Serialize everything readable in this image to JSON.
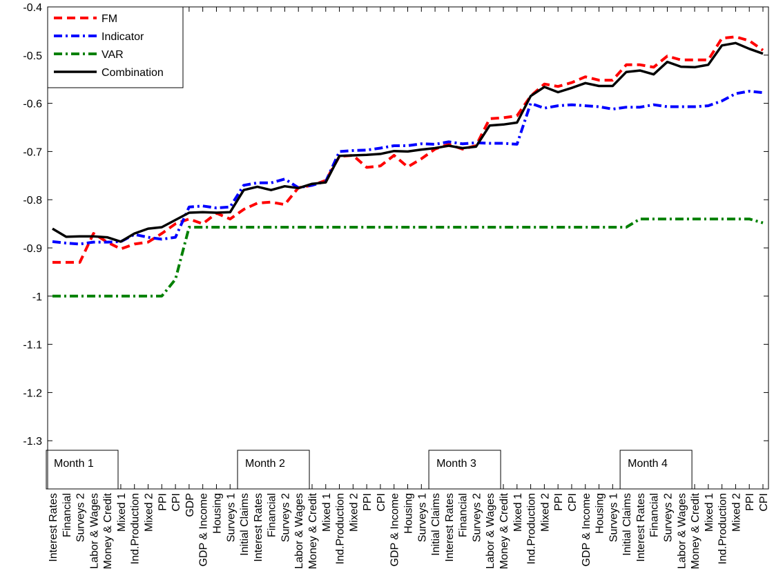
{
  "chart_data": {
    "type": "line",
    "title": "",
    "xlabel": "",
    "ylabel": "",
    "ylim": [
      -1.4,
      -0.4
    ],
    "yticks": [
      -1.3,
      -1.2,
      -1.1,
      -1,
      -0.9,
      -0.8,
      -0.7,
      -0.6,
      -0.5,
      -0.4
    ],
    "grid": false,
    "legend_position": "top-left",
    "categories": [
      "Interest Rates",
      "Financial",
      "Surveys 2",
      "Labor & Wages",
      "Money & Credit",
      "Mixed 1",
      "Ind.Production",
      "Mixed 2",
      "PPI",
      "CPI",
      "GDP",
      "GDP & Income",
      "Housing",
      "Surveys 1",
      "Initial Claims",
      "Interest Rates",
      "Financial",
      "Surveys 2",
      "Labor & Wages",
      "Money & Credit",
      "Mixed 1",
      "Ind.Production",
      "Mixed 2",
      "PPI",
      "CPI",
      "GDP & Income",
      "Housing",
      "Surveys 1",
      "Initial Claims",
      "Interest Rates",
      "Financial",
      "Surveys 2",
      "Labor & Wages",
      "Money & Credit",
      "Mixed 1",
      "Ind.Production",
      "Mixed 2",
      "PPI",
      "CPI",
      "GDP & Income",
      "Housing",
      "Surveys 1",
      "Initial Claims",
      "Interest Rates",
      "Financial",
      "Surveys 2",
      "Labor & Wages",
      "Money & Credit",
      "Mixed 1",
      "Ind.Production",
      "Mixed 2",
      "PPI",
      "CPI"
    ],
    "series": [
      {
        "name": "FM",
        "color": "#ff0000",
        "style": "dashed",
        "values": [
          -0.93,
          -0.93,
          -0.93,
          -0.87,
          -0.888,
          -0.902,
          -0.892,
          -0.888,
          -0.87,
          -0.85,
          -0.84,
          -0.85,
          -0.828,
          -0.84,
          -0.82,
          -0.807,
          -0.805,
          -0.81,
          -0.775,
          -0.77,
          -0.76,
          -0.71,
          -0.708,
          -0.733,
          -0.73,
          -0.708,
          -0.732,
          -0.715,
          -0.695,
          -0.685,
          -0.695,
          -0.688,
          -0.632,
          -0.63,
          -0.626,
          -0.585,
          -0.56,
          -0.565,
          -0.557,
          -0.545,
          -0.552,
          -0.552,
          -0.52,
          -0.52,
          -0.525,
          -0.502,
          -0.51,
          -0.51,
          -0.51,
          -0.465,
          -0.462,
          -0.47,
          -0.49
        ]
      },
      {
        "name": "Indicator",
        "color": "#0000ff",
        "style": "dashdot",
        "values": [
          -0.887,
          -0.89,
          -0.892,
          -0.888,
          -0.888,
          -0.887,
          -0.872,
          -0.878,
          -0.882,
          -0.878,
          -0.815,
          -0.813,
          -0.817,
          -0.815,
          -0.77,
          -0.765,
          -0.765,
          -0.757,
          -0.775,
          -0.77,
          -0.762,
          -0.7,
          -0.698,
          -0.697,
          -0.693,
          -0.688,
          -0.688,
          -0.684,
          -0.685,
          -0.68,
          -0.684,
          -0.682,
          -0.683,
          -0.683,
          -0.685,
          -0.6,
          -0.61,
          -0.605,
          -0.603,
          -0.605,
          -0.607,
          -0.612,
          -0.608,
          -0.608,
          -0.603,
          -0.607,
          -0.607,
          -0.607,
          -0.605,
          -0.595,
          -0.58,
          -0.575,
          -0.578
        ]
      },
      {
        "name": "VAR",
        "color": "#008000",
        "style": "dashdot",
        "values": [
          -1,
          -1,
          -1,
          -1,
          -1,
          -1,
          -1,
          -1,
          -1,
          -0.965,
          -0.857,
          -0.857,
          -0.857,
          -0.857,
          -0.857,
          -0.857,
          -0.857,
          -0.857,
          -0.857,
          -0.857,
          -0.857,
          -0.857,
          -0.857,
          -0.857,
          -0.857,
          -0.857,
          -0.857,
          -0.857,
          -0.857,
          -0.857,
          -0.857,
          -0.857,
          -0.857,
          -0.857,
          -0.857,
          -0.857,
          -0.857,
          -0.857,
          -0.857,
          -0.857,
          -0.857,
          -0.857,
          -0.857,
          -0.84,
          -0.84,
          -0.84,
          -0.84,
          -0.84,
          -0.84,
          -0.84,
          -0.84,
          -0.84,
          -0.848
        ]
      },
      {
        "name": "Combination",
        "color": "#000000",
        "style": "solid",
        "values": [
          -0.86,
          -0.877,
          -0.876,
          -0.876,
          -0.878,
          -0.887,
          -0.87,
          -0.86,
          -0.857,
          -0.842,
          -0.827,
          -0.826,
          -0.827,
          -0.826,
          -0.78,
          -0.773,
          -0.78,
          -0.772,
          -0.776,
          -0.767,
          -0.764,
          -0.709,
          -0.708,
          -0.707,
          -0.705,
          -0.699,
          -0.7,
          -0.696,
          -0.693,
          -0.688,
          -0.693,
          -0.69,
          -0.646,
          -0.644,
          -0.64,
          -0.585,
          -0.566,
          -0.577,
          -0.568,
          -0.558,
          -0.564,
          -0.564,
          -0.535,
          -0.532,
          -0.54,
          -0.514,
          -0.524,
          -0.525,
          -0.52,
          -0.48,
          -0.475,
          -0.487,
          -0.497
        ]
      }
    ],
    "annotations": [
      {
        "text": "Month 1",
        "at_index": 0
      },
      {
        "text": "Month 2",
        "at_index": 14
      },
      {
        "text": "Month 3",
        "at_index": 28
      },
      {
        "text": "Month 4",
        "at_index": 42
      }
    ]
  }
}
